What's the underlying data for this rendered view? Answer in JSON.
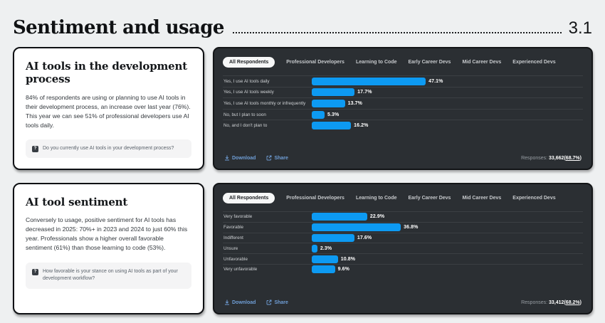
{
  "header": {
    "title": "Sentiment and usage",
    "section_number": "3.1"
  },
  "icons": {
    "question_glyph": "?"
  },
  "colors": {
    "bar_blue": "#0d9af2",
    "link_blue": "#6f9ed6",
    "panel_bg": "#2b2f33",
    "active_tab_bg": "#f6f7f7"
  },
  "tabs": [
    "All Respondents",
    "Professional Developers",
    "Learning to Code",
    "Early Career Devs",
    "Mid Career Devs",
    "Experienced Devs"
  ],
  "cards": [
    {
      "title": "AI tools in the development process",
      "body": "84% of respondents are using or planning to use AI tools in their development process, an increase over last year (76%). This year we can see 51% of professional developers use AI tools daily.",
      "question": "Do you currently use AI tools in your development process?"
    },
    {
      "title": "AI tool sentiment",
      "body": "Conversely to usage, positive sentiment for AI tools has decreased in 2025: 70%+ in 2023 and 2024 to just 60% this year. Professionals show a higher overall favorable sentiment (61%) than those learning to code (53%).",
      "question": "How favorable is your stance on using AI tools as part of your development workflow?"
    }
  ],
  "chart_data": [
    {
      "type": "bar",
      "orientation": "horizontal",
      "active_tab": "All Respondents",
      "categories": [
        "Yes, I use AI tools daily",
        "Yes, I use AI tools weekly",
        "Yes, I use AI tools monthly or infrequently",
        "No, but I plan to soon",
        "No, and I don't plan to"
      ],
      "values": [
        47.1,
        17.7,
        13.7,
        5.3,
        16.2
      ],
      "labels": [
        "47.1%",
        "17.7%",
        "13.7%",
        "5.3%",
        "16.2%"
      ],
      "xlim": [
        0,
        100
      ],
      "grid": false,
      "legend": "none",
      "footer": {
        "download": "Download",
        "share": "Share",
        "responses_label": "Responses:",
        "responses": "33,662",
        "rate": "68.7%"
      }
    },
    {
      "type": "bar",
      "orientation": "horizontal",
      "active_tab": "All Respondents",
      "categories": [
        "Very favorable",
        "Favorable",
        "Indifferent",
        "Unsure",
        "Unfavorable",
        "Very unfavorable"
      ],
      "values": [
        22.9,
        36.8,
        17.6,
        2.3,
        10.8,
        9.6
      ],
      "labels": [
        "22.9%",
        "36.8%",
        "17.6%",
        "2.3%",
        "10.8%",
        "9.6%"
      ],
      "xlim": [
        0,
        100
      ],
      "grid": false,
      "legend": "none",
      "footer": {
        "download": "Download",
        "share": "Share",
        "responses_label": "Responses:",
        "responses": "33,412",
        "rate": "68.2%"
      }
    }
  ]
}
